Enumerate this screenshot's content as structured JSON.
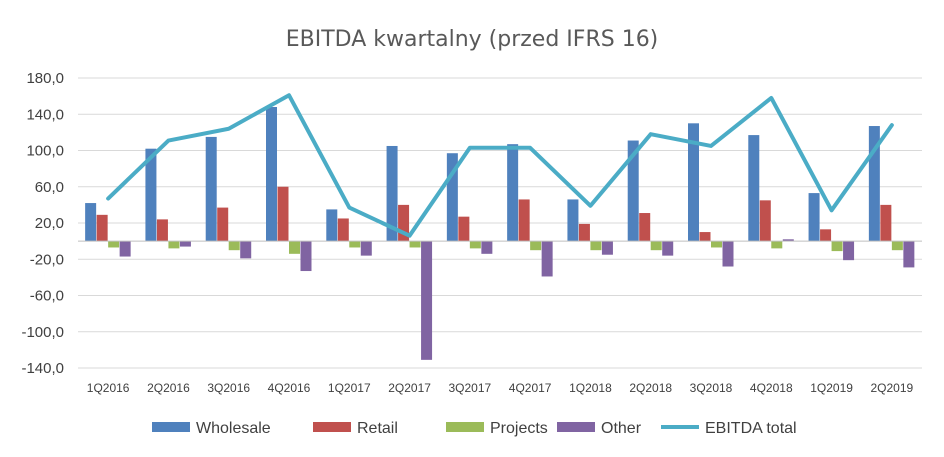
{
  "chart_data": {
    "type": "bar",
    "title": "EBITDA kwartalny (przed IFRS 16)",
    "xlabel": "",
    "ylabel": "",
    "ylim": [
      -140,
      180
    ],
    "yticks": [
      "180,0",
      "140,0",
      "100,0",
      "60,0",
      "20,0",
      "-20,0",
      "-60,0",
      "-100,0",
      "-140,0"
    ],
    "ytick_values": [
      180,
      140,
      100,
      60,
      20,
      -20,
      -60,
      -100,
      -140
    ],
    "grid": true,
    "legend": "bottom",
    "categories": [
      "1Q2016",
      "2Q2016",
      "3Q2016",
      "4Q2016",
      "1Q2017",
      "2Q2017",
      "3Q2017",
      "4Q2017",
      "1Q2018",
      "2Q2018",
      "3Q2018",
      "4Q2018",
      "1Q2019",
      "2Q2019"
    ],
    "series": [
      {
        "name": "Wholesale",
        "kind": "bar",
        "color": "#4f81bd",
        "values": [
          42,
          102,
          115,
          148,
          35,
          105,
          97,
          107,
          46,
          111,
          130,
          117,
          53,
          127
        ]
      },
      {
        "name": "Retail",
        "kind": "bar",
        "color": "#c0504d",
        "values": [
          29,
          24,
          37,
          60,
          25,
          40,
          27,
          46,
          19,
          31,
          10,
          45,
          13,
          40
        ]
      },
      {
        "name": "Projects",
        "kind": "bar",
        "color": "#9bbb59",
        "values": [
          -7,
          -8,
          -10,
          -14,
          -7,
          -7,
          -8,
          -10,
          -10,
          -10,
          -7,
          -8,
          -11,
          -10
        ]
      },
      {
        "name": "Other",
        "kind": "bar",
        "color": "#8064a2",
        "values": [
          -17,
          -6,
          -19,
          -33,
          -16,
          -131,
          -14,
          -39,
          -15,
          -16,
          -28,
          2,
          -21,
          -29
        ]
      },
      {
        "name": "EBITDA total",
        "kind": "line",
        "color": "#4bacc6",
        "values": [
          47,
          111,
          124,
          161,
          37,
          6,
          103,
          103,
          39,
          118,
          105,
          158,
          34,
          128
        ]
      }
    ]
  }
}
